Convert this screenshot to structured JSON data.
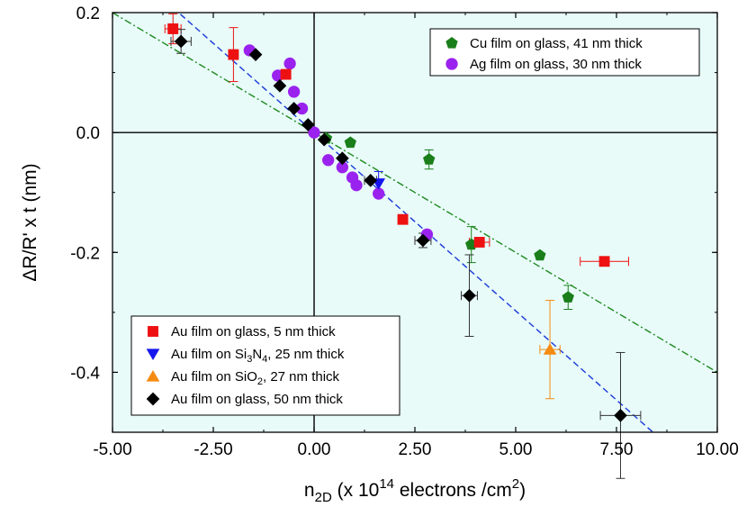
{
  "chart_data": {
    "type": "scatter",
    "title": "",
    "xlabel": {
      "main": "n",
      "sub": "2D",
      "rest": " (x 10",
      "sup": "14",
      "tail": " electrons /cm",
      "sup2": "2",
      "close": ")"
    },
    "ylabel": "ΔR/R' x t (nm)",
    "xlim": [
      -5.0,
      10.0
    ],
    "ylim": [
      -0.5,
      0.2
    ],
    "xticks": [
      -5.0,
      -2.5,
      0.0,
      2.5,
      5.0,
      7.5,
      10.0
    ],
    "xtick_labels": [
      "-5.00",
      "-2.50",
      "0.00",
      "2.50",
      "5.00",
      "7.50",
      "10.00"
    ],
    "yticks": [
      -0.4,
      -0.2,
      0.0,
      0.2
    ],
    "ytick_labels": [
      "-0.4",
      "-0.2",
      "0.0",
      "0.2"
    ],
    "background": "#e8fbf9",
    "legend_upper": {
      "placement": "top-right",
      "entries": [
        {
          "series": 4,
          "label": "Cu film on glass, 41 nm thick"
        },
        {
          "series": 5,
          "label": "Ag film on glass, 30 nm thick"
        }
      ]
    },
    "legend_lower": {
      "placement": "bottom-left",
      "entries": [
        {
          "series": 0,
          "label": "Au film on glass, 5 nm thick"
        },
        {
          "series": 1,
          "label": "Au film on Si",
          "sub": "3",
          "mid": "N",
          "sub2": "4",
          "tail": ", 25 nm thick"
        },
        {
          "series": 2,
          "label": "Au film on SiO",
          "sub": "2",
          "tail": ", 27 nm thick"
        },
        {
          "series": 3,
          "label": "Au film on glass, 50 nm thick"
        }
      ]
    },
    "series": [
      {
        "name": "Au film on glass, 5 nm thick",
        "marker": "square",
        "color": "#ee1111",
        "x": [
          -3.5,
          -2.0,
          -0.7,
          2.2,
          4.1,
          7.2
        ],
        "y": [
          0.173,
          0.13,
          0.097,
          -0.145,
          -0.183,
          -0.215
        ],
        "yerr": [
          0.025,
          0.045,
          0,
          0,
          0,
          0
        ],
        "xerr": [
          0.2,
          0,
          0,
          0,
          0.25,
          0.6
        ]
      },
      {
        "name": "Au film on Si3N4, 25 nm thick",
        "marker": "triangle-down",
        "color": "#1515ee",
        "x": [
          1.6
        ],
        "y": [
          -0.085
        ],
        "yerr": [
          0.02
        ],
        "xerr": [
          0
        ]
      },
      {
        "name": "Au film on SiO2, 27 nm thick",
        "marker": "triangle-up",
        "color": "#f58a10",
        "x": [
          5.85
        ],
        "y": [
          -0.362
        ],
        "yerr": [
          0.082
        ],
        "xerr": [
          0.25
        ]
      },
      {
        "name": "Au film on glass, 50 nm thick",
        "marker": "diamond",
        "color": "#000000",
        "x": [
          -3.3,
          -1.45,
          -0.85,
          -0.5,
          -0.15,
          0.25,
          0.7,
          1.4,
          2.7,
          3.85,
          7.6
        ],
        "y": [
          0.152,
          0.13,
          0.078,
          0.04,
          0.013,
          -0.012,
          -0.043,
          -0.08,
          -0.18,
          -0.272,
          -0.472
        ],
        "yerr": [
          0.02,
          0,
          0,
          0,
          0,
          0,
          0,
          0,
          0.012,
          0.068,
          0.105
        ],
        "xerr": [
          0.25,
          0,
          0,
          0,
          0,
          0,
          0,
          0.15,
          0.2,
          0.2,
          0.5
        ]
      },
      {
        "name": "Cu film on glass, 41 nm thick",
        "marker": "pentagon",
        "color": "#1a7f1a",
        "x": [
          0.3,
          0.9,
          2.85,
          3.9,
          5.6,
          6.3
        ],
        "y": [
          -0.01,
          -0.017,
          -0.045,
          -0.187,
          -0.205,
          -0.275
        ],
        "yerr": [
          0,
          0,
          0.016,
          0.03,
          0,
          0.02
        ],
        "xerr": [
          0,
          0,
          0,
          0,
          0,
          0
        ]
      },
      {
        "name": "Ag film on glass, 30 nm thick",
        "marker": "circle",
        "color": "#9a22ee",
        "x": [
          -1.6,
          -0.9,
          -0.6,
          -0.5,
          -0.3,
          0.0,
          0.35,
          0.7,
          0.95,
          1.05,
          1.6,
          2.8
        ],
        "y": [
          0.137,
          0.095,
          0.115,
          0.068,
          0.04,
          0.0,
          -0.046,
          -0.058,
          -0.075,
          -0.088,
          -0.102,
          -0.17
        ],
        "yerr": [
          0,
          0,
          0,
          0,
          0,
          0,
          0,
          0,
          0,
          0,
          0,
          0
        ],
        "xerr": [
          0,
          0,
          0,
          0,
          0,
          0,
          0,
          0,
          0,
          0,
          0,
          0
        ]
      }
    ],
    "fit_lines": [
      {
        "style": "dashed",
        "color": "#1a3ad8",
        "slope": -0.0595,
        "intercept": 0.0,
        "x_range": [
          -3.5,
          8.6
        ]
      },
      {
        "style": "dash-dot",
        "color": "#1f8a1f",
        "slope": -0.04,
        "intercept": 0.0,
        "x_range": [
          -5.0,
          10.0
        ]
      }
    ]
  }
}
